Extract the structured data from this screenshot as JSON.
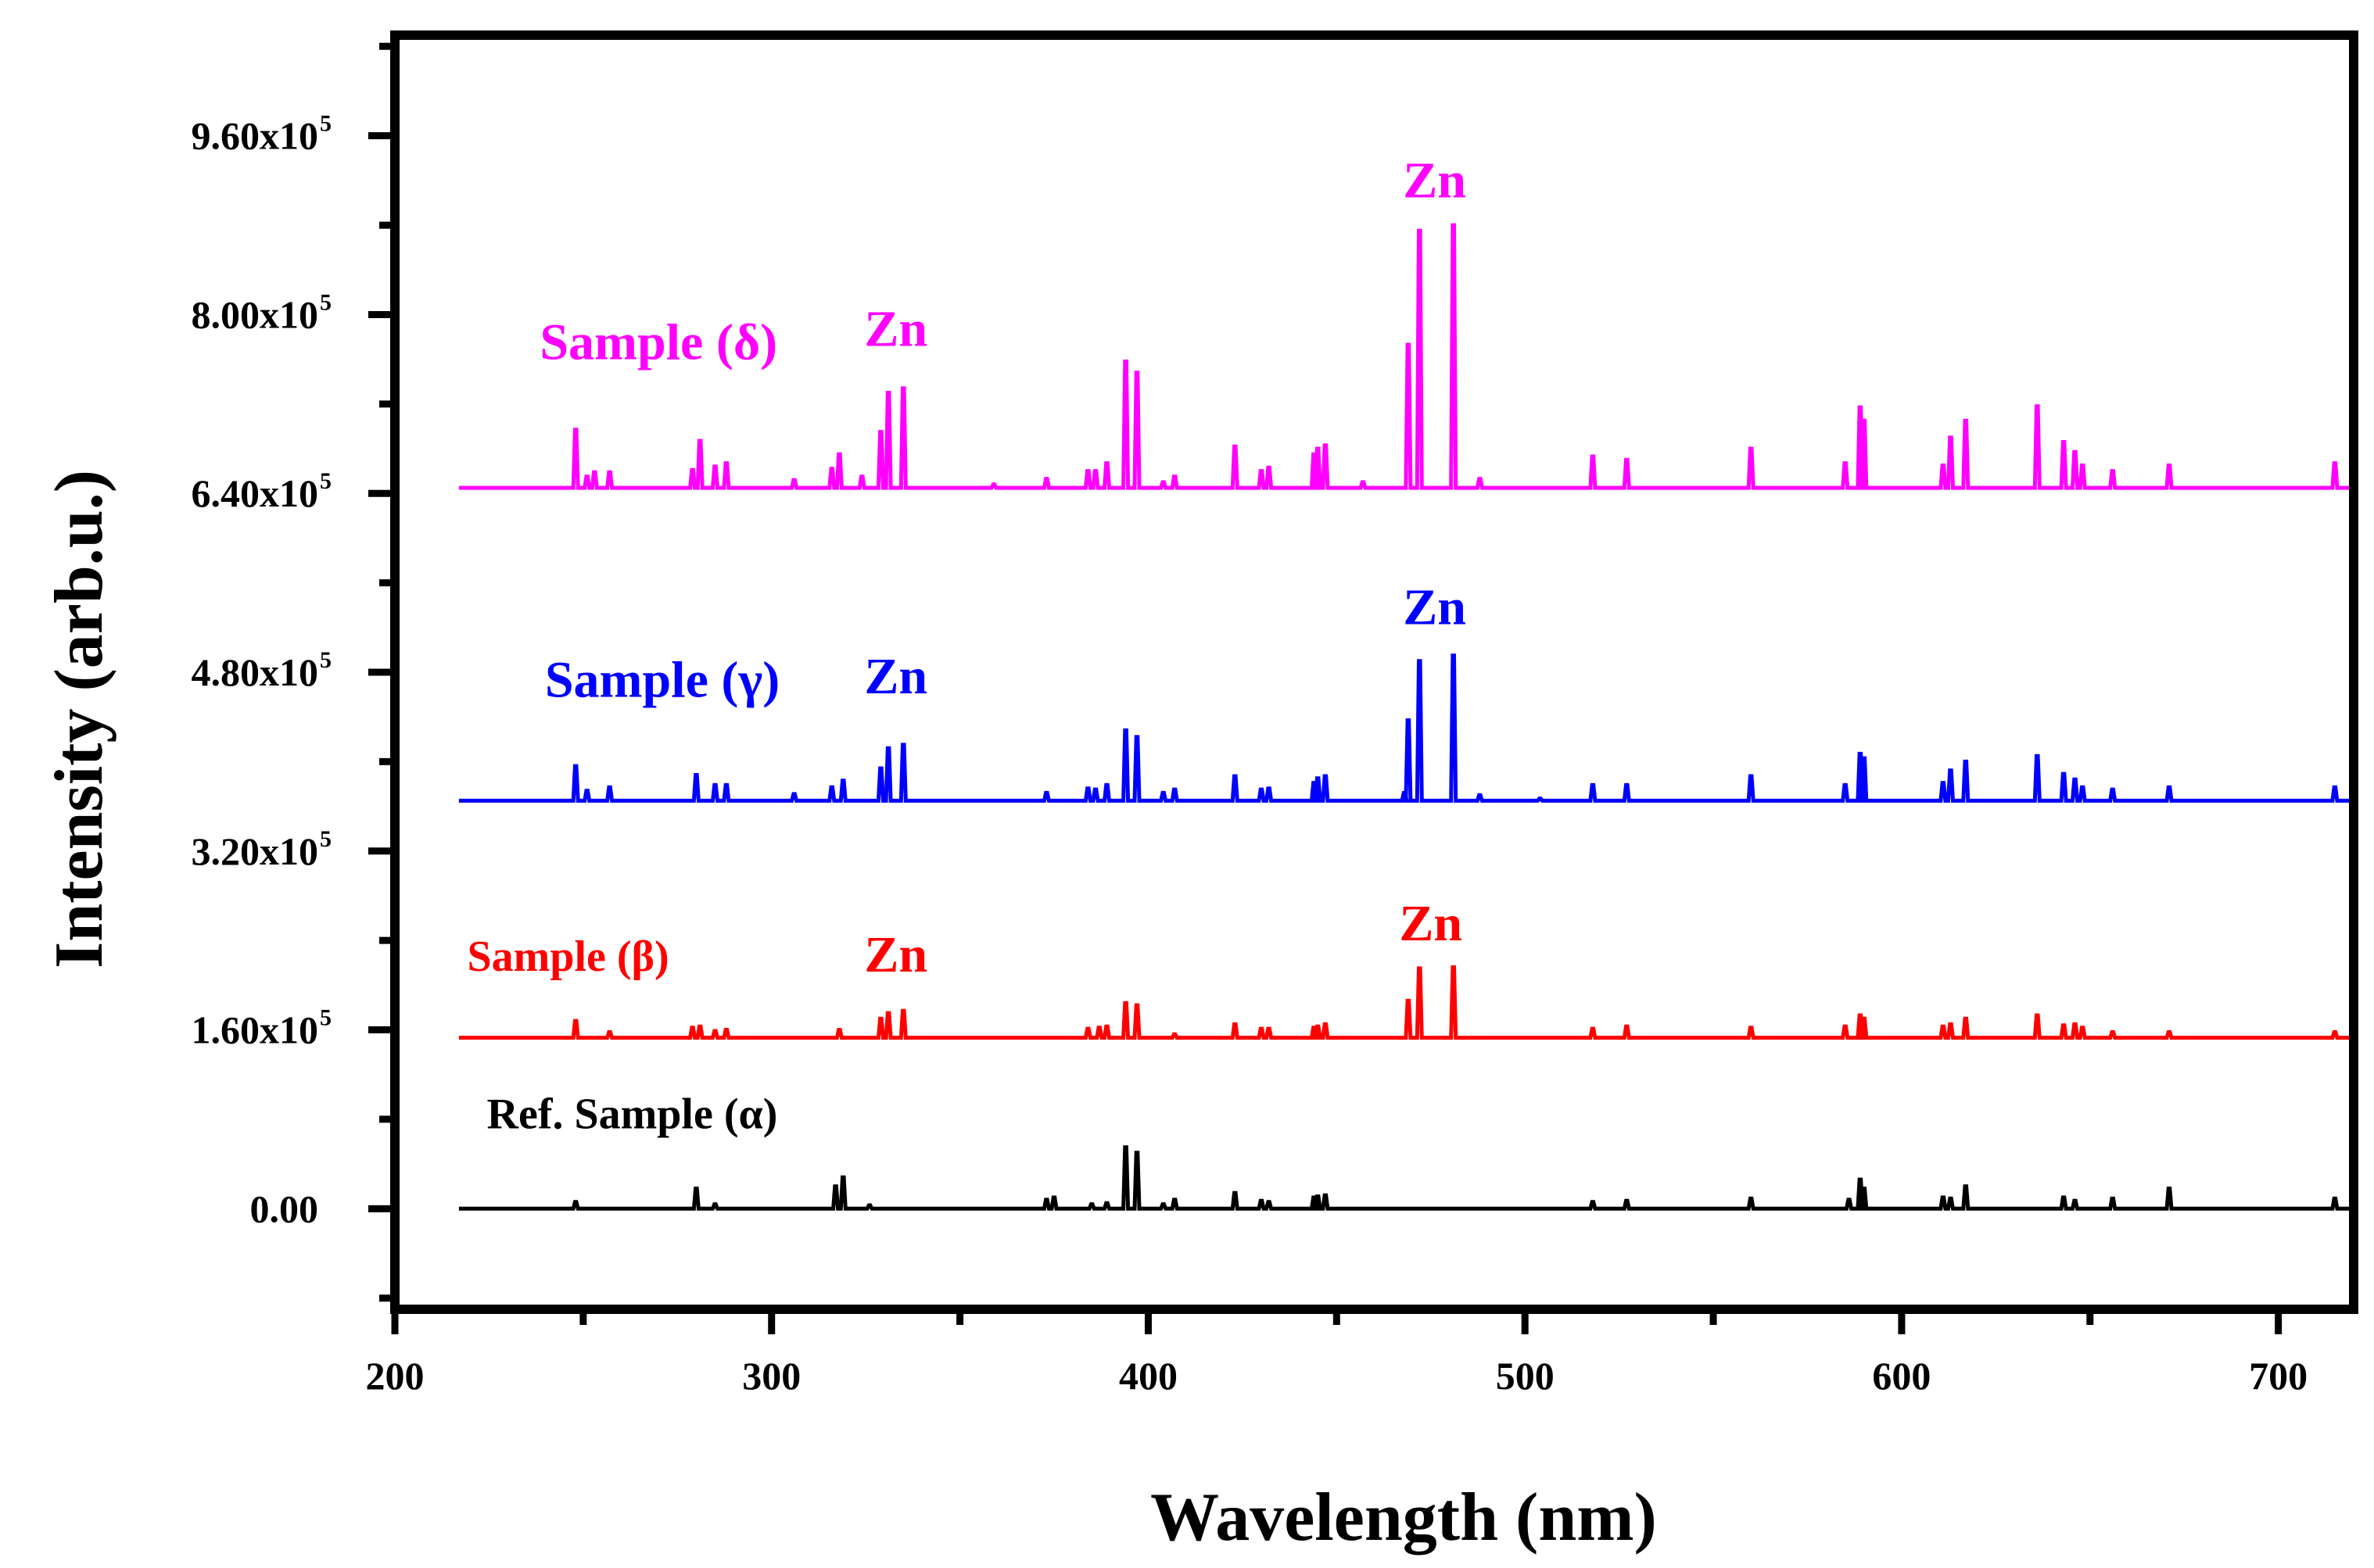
{
  "chart_data": {
    "type": "line",
    "title": "",
    "xlabel": "Wavelength (nm)",
    "ylabel": "Intensity (arb.u.)",
    "xlim": [
      200,
      720
    ],
    "ylim": [
      -90000,
      1050000
    ],
    "xticks": [
      200,
      300,
      400,
      500,
      600,
      700
    ],
    "xtick_labels": [
      "200",
      "300",
      "400",
      "500",
      "600",
      "700"
    ],
    "yticks": [
      0,
      160000,
      320000,
      480000,
      640000,
      800000,
      960000
    ],
    "ytick_labels": [
      {
        "mantissa": "0.00",
        "exp": ""
      },
      {
        "mantissa": "1.60x10",
        "exp": "5"
      },
      {
        "mantissa": "3.20x10",
        "exp": "5"
      },
      {
        "mantissa": "4.80x10",
        "exp": "5"
      },
      {
        "mantissa": "6.40x10",
        "exp": "5"
      },
      {
        "mantissa": "8.00x10",
        "exp": "5"
      },
      {
        "mantissa": "9.60x10",
        "exp": "5"
      }
    ],
    "grid": false,
    "x_start": 217,
    "series": [
      {
        "name": "Ref. Sample (α)",
        "color": "#000000",
        "baseline": 0,
        "peaks": [
          [
            248,
            6000
          ],
          [
            280,
            18000
          ],
          [
            285,
            4000
          ],
          [
            317,
            20000
          ],
          [
            319,
            28000
          ],
          [
            326,
            3000
          ],
          [
            373,
            8000
          ],
          [
            375,
            10000
          ],
          [
            385,
            4000
          ],
          [
            389,
            5000
          ],
          [
            394,
            55000
          ],
          [
            397,
            50000
          ],
          [
            404,
            4000
          ],
          [
            407,
            8000
          ],
          [
            423,
            14000
          ],
          [
            430,
            7000
          ],
          [
            432,
            6000
          ],
          [
            444,
            10000
          ],
          [
            445,
            11000
          ],
          [
            447,
            12000
          ],
          [
            518,
            6000
          ],
          [
            527,
            7000
          ],
          [
            560,
            9000
          ],
          [
            586,
            8000
          ],
          [
            589,
            26000
          ],
          [
            590,
            18000
          ],
          [
            611,
            10000
          ],
          [
            613,
            9000
          ],
          [
            617,
            20000
          ],
          [
            643,
            10000
          ],
          [
            646,
            7000
          ],
          [
            656,
            9000
          ],
          [
            671,
            18000
          ],
          [
            715,
            9000
          ]
        ]
      },
      {
        "name": "Sample (β)",
        "color": "#ff0000",
        "baseline": 153000,
        "peaks": [
          [
            248,
            15000
          ],
          [
            257,
            5000
          ],
          [
            279,
            9000
          ],
          [
            281,
            10000
          ],
          [
            285,
            6000
          ],
          [
            288,
            7000
          ],
          [
            318,
            7000
          ],
          [
            329,
            17000
          ],
          [
            331,
            22000
          ],
          [
            335,
            24000
          ],
          [
            384,
            8000
          ],
          [
            387,
            9000
          ],
          [
            389,
            10000
          ],
          [
            394,
            31000
          ],
          [
            397,
            29000
          ],
          [
            407,
            3000
          ],
          [
            423,
            12000
          ],
          [
            430,
            8000
          ],
          [
            432,
            8000
          ],
          [
            444,
            9000
          ],
          [
            445,
            10000
          ],
          [
            447,
            12000
          ],
          [
            469,
            33000
          ],
          [
            472,
            62000
          ],
          [
            481,
            63000
          ],
          [
            518,
            8000
          ],
          [
            527,
            10000
          ],
          [
            560,
            9000
          ],
          [
            585,
            10000
          ],
          [
            589,
            20000
          ],
          [
            590,
            17000
          ],
          [
            611,
            10000
          ],
          [
            613,
            12000
          ],
          [
            617,
            17000
          ],
          [
            636,
            20000
          ],
          [
            643,
            11000
          ],
          [
            646,
            12000
          ],
          [
            648,
            9000
          ],
          [
            656,
            5000
          ],
          [
            671,
            5000
          ],
          [
            715,
            5000
          ]
        ]
      },
      {
        "name": "Sample (γ)",
        "color": "#0000ff",
        "baseline": 365000,
        "peaks": [
          [
            248,
            31000
          ],
          [
            251,
            9000
          ],
          [
            257,
            12000
          ],
          [
            280,
            23000
          ],
          [
            285,
            14000
          ],
          [
            288,
            14000
          ],
          [
            306,
            6000
          ],
          [
            316,
            12000
          ],
          [
            319,
            18000
          ],
          [
            329,
            29000
          ],
          [
            331,
            47000
          ],
          [
            335,
            50000
          ],
          [
            373,
            7000
          ],
          [
            384,
            11000
          ],
          [
            386,
            10000
          ],
          [
            389,
            14000
          ],
          [
            394,
            63000
          ],
          [
            397,
            57000
          ],
          [
            404,
            7000
          ],
          [
            407,
            10000
          ],
          [
            423,
            22000
          ],
          [
            430,
            10000
          ],
          [
            432,
            11000
          ],
          [
            444,
            16000
          ],
          [
            445,
            20000
          ],
          [
            447,
            22000
          ],
          [
            468,
            7000
          ],
          [
            469,
            72000
          ],
          [
            472,
            125000
          ],
          [
            481,
            130000
          ],
          [
            488,
            5000
          ],
          [
            504,
            2000
          ],
          [
            518,
            14000
          ],
          [
            527,
            14000
          ],
          [
            560,
            22000
          ],
          [
            585,
            14000
          ],
          [
            589,
            42000
          ],
          [
            590,
            38000
          ],
          [
            611,
            16000
          ],
          [
            613,
            27000
          ],
          [
            617,
            35000
          ],
          [
            636,
            40000
          ],
          [
            643,
            24000
          ],
          [
            646,
            19000
          ],
          [
            648,
            12000
          ],
          [
            656,
            10000
          ],
          [
            671,
            12000
          ],
          [
            715,
            12000
          ]
        ]
      },
      {
        "name": "Sample (δ)",
        "color": "#ff00ff",
        "baseline": 645000,
        "peaks": [
          [
            248,
            52000
          ],
          [
            251,
            10000
          ],
          [
            253,
            14000
          ],
          [
            257,
            14000
          ],
          [
            279,
            16000
          ],
          [
            281,
            42000
          ],
          [
            285,
            19000
          ],
          [
            288,
            22000
          ],
          [
            306,
            7000
          ],
          [
            316,
            17000
          ],
          [
            318,
            30000
          ],
          [
            324,
            10000
          ],
          [
            329,
            50000
          ],
          [
            331,
            85000
          ],
          [
            335,
            89000
          ],
          [
            359,
            3000
          ],
          [
            373,
            8000
          ],
          [
            384,
            15000
          ],
          [
            386,
            15000
          ],
          [
            389,
            22000
          ],
          [
            394,
            113000
          ],
          [
            397,
            103000
          ],
          [
            404,
            5000
          ],
          [
            407,
            10000
          ],
          [
            423,
            37000
          ],
          [
            430,
            15000
          ],
          [
            432,
            18000
          ],
          [
            444,
            30000
          ],
          [
            445,
            35000
          ],
          [
            447,
            38000
          ],
          [
            457,
            5000
          ],
          [
            469,
            128000
          ],
          [
            472,
            230000
          ],
          [
            481,
            235000
          ],
          [
            488,
            8000
          ],
          [
            518,
            28000
          ],
          [
            527,
            25000
          ],
          [
            560,
            35000
          ],
          [
            585,
            22000
          ],
          [
            589,
            72000
          ],
          [
            590,
            60000
          ],
          [
            611,
            20000
          ],
          [
            613,
            45000
          ],
          [
            617,
            60000
          ],
          [
            636,
            73000
          ],
          [
            643,
            41000
          ],
          [
            646,
            32000
          ],
          [
            648,
            20000
          ],
          [
            656,
            15000
          ],
          [
            671,
            20000
          ],
          [
            715,
            22000
          ]
        ]
      }
    ],
    "annotations": [
      {
        "text": "Sample (δ)",
        "x": 270,
        "y": 760000,
        "color": "#ff00ff",
        "size": "large"
      },
      {
        "text": "Zn",
        "x": 333,
        "y": 772000,
        "color": "#ff00ff",
        "size": "large"
      },
      {
        "text": "Zn",
        "x": 476,
        "y": 905000,
        "color": "#ff00ff",
        "size": "large"
      },
      {
        "text": "Sample (γ)",
        "x": 271,
        "y": 458000,
        "color": "#0000ff",
        "size": "large"
      },
      {
        "text": "Zn",
        "x": 333,
        "y": 461000,
        "color": "#0000ff",
        "size": "large"
      },
      {
        "text": "Zn",
        "x": 476,
        "y": 523000,
        "color": "#0000ff",
        "size": "large"
      },
      {
        "text": "Sample (β)",
        "x": 246,
        "y": 213000,
        "color": "#ff0000",
        "size": "medium"
      },
      {
        "text": "Zn",
        "x": 333,
        "y": 212000,
        "color": "#ff0000",
        "size": "large"
      },
      {
        "text": "Zn",
        "x": 475,
        "y": 240000,
        "color": "#ff0000",
        "size": "large"
      },
      {
        "text": "Ref. Sample (α)",
        "x": 263,
        "y": 72000,
        "color": "#000000",
        "size": "medium"
      }
    ]
  }
}
